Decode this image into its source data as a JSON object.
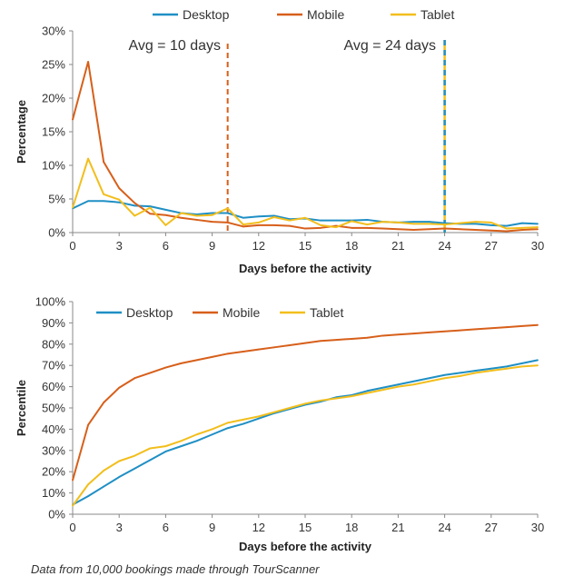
{
  "colors": {
    "desktop": "#1f8fc4",
    "mobile": "#d75f1a",
    "tablet": "#f2be1c",
    "axis": "#888888"
  },
  "caption": "Data from 10,000 bookings made through TourScanner",
  "chart_data": [
    {
      "type": "line",
      "title": "",
      "xlabel": "Days before the activity",
      "ylabel": "Percentage",
      "xlim": [
        0,
        30
      ],
      "ylim": [
        0,
        30
      ],
      "x_ticks": [
        0,
        3,
        6,
        9,
        12,
        15,
        18,
        21,
        24,
        27,
        30
      ],
      "y_ticks": [
        0,
        5,
        10,
        15,
        20,
        25,
        30
      ],
      "y_tick_labels": [
        "0%",
        "5%",
        "10%",
        "15%",
        "20%",
        "25%",
        "30%"
      ],
      "x": [
        0,
        1,
        2,
        3,
        4,
        5,
        6,
        7,
        8,
        9,
        10,
        11,
        12,
        13,
        14,
        15,
        16,
        17,
        18,
        19,
        20,
        21,
        22,
        23,
        24,
        25,
        26,
        27,
        28,
        29,
        30
      ],
      "series": [
        {
          "name": "Desktop",
          "values": [
            3.6,
            4.7,
            4.7,
            4.5,
            4.0,
            3.9,
            3.4,
            2.9,
            2.7,
            2.9,
            2.9,
            2.2,
            2.4,
            2.5,
            2.0,
            2.1,
            1.8,
            1.8,
            1.8,
            1.9,
            1.6,
            1.5,
            1.6,
            1.6,
            1.4,
            1.3,
            1.3,
            1.1,
            1.0,
            1.4,
            1.3
          ]
        },
        {
          "name": "Mobile",
          "values": [
            16.8,
            25.4,
            10.5,
            6.6,
            4.4,
            2.8,
            2.6,
            2.2,
            1.9,
            1.6,
            1.5,
            0.9,
            1.1,
            1.1,
            1.0,
            0.6,
            0.7,
            1.0,
            0.7,
            0.7,
            0.6,
            0.5,
            0.4,
            0.5,
            0.6,
            0.5,
            0.4,
            0.3,
            0.2,
            0.4,
            0.5
          ]
        },
        {
          "name": "Tablet",
          "values": [
            3.7,
            11.0,
            5.7,
            4.9,
            2.5,
            3.7,
            1.1,
            2.9,
            2.5,
            2.6,
            3.6,
            1.2,
            1.5,
            2.3,
            1.8,
            2.2,
            1.1,
            0.8,
            1.7,
            1.2,
            1.6,
            1.5,
            1.3,
            1.3,
            1.2,
            1.4,
            1.6,
            1.5,
            0.6,
            0.7,
            0.8
          ]
        }
      ],
      "annotations": [
        {
          "text": "Avg = 10 days",
          "x": 10,
          "line_color": "mobile"
        },
        {
          "text": "Avg = 24 days",
          "x": 24,
          "line_color": "desktop+tablet"
        }
      ]
    },
    {
      "type": "line",
      "title": "",
      "xlabel": "Days before the activity",
      "ylabel": "Percentile",
      "xlim": [
        0,
        30
      ],
      "ylim": [
        0,
        100
      ],
      "x_ticks": [
        0,
        3,
        6,
        9,
        12,
        15,
        18,
        21,
        24,
        27,
        30
      ],
      "y_ticks": [
        0,
        10,
        20,
        30,
        40,
        50,
        60,
        70,
        80,
        90,
        100
      ],
      "y_tick_labels": [
        "0%",
        "10%",
        "20%",
        "30%",
        "40%",
        "50%",
        "60%",
        "70%",
        "80%",
        "90%",
        "100%"
      ],
      "x": [
        0,
        1,
        2,
        3,
        4,
        5,
        6,
        7,
        8,
        9,
        10,
        11,
        12,
        13,
        14,
        15,
        16,
        17,
        18,
        19,
        20,
        21,
        22,
        23,
        24,
        25,
        26,
        27,
        28,
        29,
        30
      ],
      "series": [
        {
          "name": "Desktop",
          "values": [
            4.5,
            8.5,
            13,
            17.5,
            21.5,
            25.5,
            29.5,
            32,
            34.5,
            37.5,
            40.5,
            42.5,
            45,
            47.5,
            49.5,
            51.5,
            53,
            55,
            56,
            58,
            59.5,
            61,
            62.5,
            64,
            65.5,
            66.5,
            67.5,
            68.5,
            69.5,
            71,
            72.5
          ]
        },
        {
          "name": "Mobile",
          "values": [
            16,
            42,
            52.5,
            59.5,
            64,
            66.5,
            69,
            71,
            72.5,
            74,
            75.5,
            76.5,
            77.5,
            78.5,
            79.5,
            80.5,
            81.5,
            82,
            82.5,
            83,
            84,
            84.5,
            85,
            85.5,
            86,
            86.5,
            87,
            87.5,
            88,
            88.5,
            89
          ]
        },
        {
          "name": "Tablet",
          "values": [
            4,
            14,
            20.5,
            25,
            27.5,
            31,
            32,
            34.5,
            37.5,
            40,
            43,
            44.5,
            46,
            48,
            50,
            52,
            53.5,
            54.5,
            55.5,
            57,
            58.5,
            60,
            61,
            62.5,
            64,
            65,
            66.5,
            67.5,
            68.5,
            69.5,
            70
          ]
        }
      ]
    }
  ]
}
